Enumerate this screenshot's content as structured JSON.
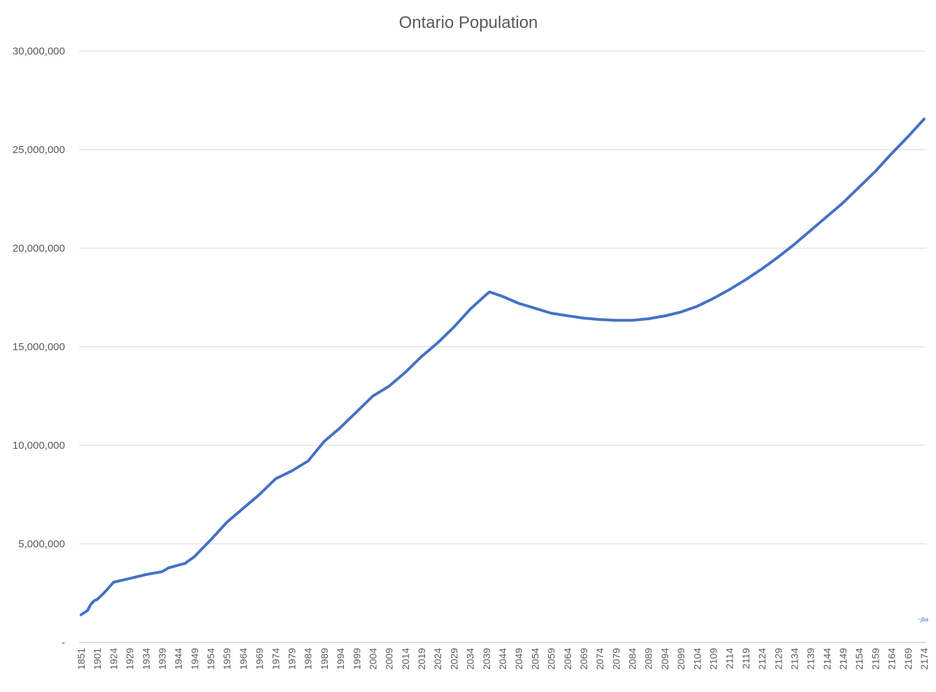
{
  "chart_data": {
    "type": "line",
    "title": "Ontario Population",
    "signature": "~jba",
    "ylim": [
      0,
      30000000
    ],
    "y_ticks": [
      {
        "value": 0,
        "label": "-"
      },
      {
        "value": 5000000,
        "label": "5,000,000"
      },
      {
        "value": 10000000,
        "label": "10,000,000"
      },
      {
        "value": 15000000,
        "label": "15,000,000"
      },
      {
        "value": 20000000,
        "label": "20,000,000"
      },
      {
        "value": 25000000,
        "label": "25,000,000"
      },
      {
        "value": 30000000,
        "label": "30,000,000"
      }
    ],
    "grid": true,
    "x_tick_labels": [
      "1851",
      "1901",
      "1924",
      "1929",
      "1934",
      "1939",
      "1944",
      "1949",
      "1954",
      "1959",
      "1964",
      "1969",
      "1974",
      "1979",
      "1984",
      "1989",
      "1994",
      "1999",
      "2004",
      "2009",
      "2014",
      "2019",
      "2024",
      "2029",
      "2034",
      "2039",
      "2044",
      "2049",
      "2054",
      "2059",
      "2064",
      "2069",
      "2074",
      "2079",
      "2084",
      "2089",
      "2094",
      "2099",
      "2104",
      "2109",
      "2114",
      "2119",
      "2124",
      "2129",
      "2134",
      "2139",
      "2144",
      "2149",
      "2154",
      "2159",
      "2164",
      "2169",
      "2174"
    ],
    "x_category_count": 261,
    "series": [
      {
        "color": "#4472c4",
        "points": [
          {
            "x": "1851",
            "y": 1400000
          },
          {
            "x": "1871",
            "y": 1620000
          },
          {
            "x": "1881",
            "y": 1930000
          },
          {
            "x": "1891",
            "y": 2110000
          },
          {
            "x": "1901",
            "y": 2180000
          },
          {
            "x": "1911",
            "y": 2530000
          },
          {
            "x": "1921",
            "y": 2930000
          },
          {
            "x": "1924",
            "y": 3050000
          },
          {
            "x": "1929",
            "y": 3240000
          },
          {
            "x": "1934",
            "y": 3440000
          },
          {
            "x": "1939",
            "y": 3590000
          },
          {
            "x": "1941",
            "y": 3780000
          },
          {
            "x": "1944",
            "y": 3920000
          },
          {
            "x": "1946",
            "y": 4000000
          },
          {
            "x": "1949",
            "y": 4350000
          },
          {
            "x": "1951",
            "y": 4700000
          },
          {
            "x": "1954",
            "y": 5200000
          },
          {
            "x": "1959",
            "y": 6100000
          },
          {
            "x": "1964",
            "y": 6800000
          },
          {
            "x": "1969",
            "y": 7500000
          },
          {
            "x": "1974",
            "y": 8300000
          },
          {
            "x": "1979",
            "y": 8700000
          },
          {
            "x": "1984",
            "y": 9200000
          },
          {
            "x": "1987",
            "y": 9800000
          },
          {
            "x": "1989",
            "y": 10200000
          },
          {
            "x": "1994",
            "y": 10900000
          },
          {
            "x": "1999",
            "y": 11700000
          },
          {
            "x": "2004",
            "y": 12500000
          },
          {
            "x": "2009",
            "y": 13000000
          },
          {
            "x": "2014",
            "y": 13700000
          },
          {
            "x": "2019",
            "y": 14500000
          },
          {
            "x": "2024",
            "y": 15200000
          },
          {
            "x": "2029",
            "y": 16000000
          },
          {
            "x": "2034",
            "y": 16900000
          },
          {
            "x": "2039",
            "y": 17650000
          },
          {
            "x": "2040",
            "y": 17780000
          },
          {
            "x": "2044",
            "y": 17550000
          },
          {
            "x": "2049",
            "y": 17200000
          },
          {
            "x": "2054",
            "y": 16950000
          },
          {
            "x": "2059",
            "y": 16700000
          },
          {
            "x": "2064",
            "y": 16570000
          },
          {
            "x": "2069",
            "y": 16450000
          },
          {
            "x": "2074",
            "y": 16380000
          },
          {
            "x": "2079",
            "y": 16340000
          },
          {
            "x": "2084",
            "y": 16340000
          },
          {
            "x": "2089",
            "y": 16420000
          },
          {
            "x": "2094",
            "y": 16560000
          },
          {
            "x": "2099",
            "y": 16760000
          },
          {
            "x": "2104",
            "y": 17050000
          },
          {
            "x": "2109",
            "y": 17450000
          },
          {
            "x": "2114",
            "y": 17900000
          },
          {
            "x": "2119",
            "y": 18400000
          },
          {
            "x": "2124",
            "y": 18950000
          },
          {
            "x": "2129",
            "y": 19550000
          },
          {
            "x": "2134",
            "y": 20200000
          },
          {
            "x": "2139",
            "y": 20900000
          },
          {
            "x": "2144",
            "y": 21600000
          },
          {
            "x": "2149",
            "y": 22300000
          },
          {
            "x": "2154",
            "y": 23100000
          },
          {
            "x": "2159",
            "y": 23900000
          },
          {
            "x": "2164",
            "y": 24800000
          },
          {
            "x": "2169",
            "y": 25650000
          },
          {
            "x": "2174",
            "y": 26550000
          }
        ]
      }
    ]
  }
}
